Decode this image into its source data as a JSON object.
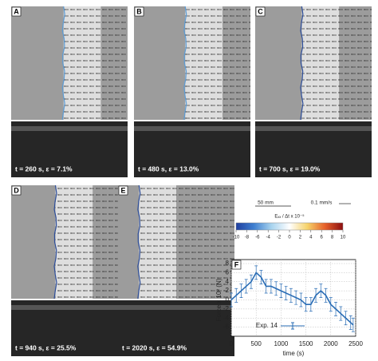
{
  "panels": [
    {
      "label": "A",
      "caption": "t = 260 s, ε = 7.1%"
    },
    {
      "label": "B",
      "caption": "t = 480 s, ε = 13.0%"
    },
    {
      "label": "C",
      "caption": "t = 700 s, ε = 19.0%"
    },
    {
      "label": "D",
      "caption": "t = 940 s, ε = 25.5%"
    },
    {
      "label": "E",
      "caption": "t = 2020 s, ε = 54.9%"
    }
  ],
  "scale": {
    "length": "50 mm",
    "velocity": "0.1 mm/s"
  },
  "colorbar": {
    "label": "Eₓₓ / Δt x 10⁻⁵",
    "lim": [
      -10,
      10
    ],
    "ticks": [
      -10,
      -8,
      -6,
      -4,
      -2,
      0,
      2,
      4,
      6,
      8,
      10
    ],
    "colors": [
      "#1f3f9f",
      "#3f7fd0",
      "#a9d4ef",
      "#ffffff",
      "#f6d36a",
      "#e6602a",
      "#8c0e10"
    ]
  },
  "chart_data": {
    "type": "line",
    "label": "F",
    "xlabel": "time (s)",
    "ylabel": "Force x 10² (N)",
    "x": [
      0,
      100,
      200,
      300,
      400,
      500,
      600,
      700,
      800,
      900,
      1000,
      1100,
      1200,
      1300,
      1400,
      1500,
      1600,
      1700,
      1800,
      1900,
      2000,
      2100,
      2200,
      2300,
      2400,
      2450
    ],
    "series": [
      {
        "name": "Exp. 14",
        "color": "#2a6db5",
        "values": [
          0,
          1,
          2,
          3,
          4,
          6,
          5,
          3,
          3,
          2.5,
          2,
          1.5,
          1,
          0.5,
          0,
          -1,
          -1,
          1,
          2,
          1,
          -1,
          -2,
          -3,
          -4,
          -5,
          -5.5
        ],
        "errors": [
          1.5,
          1.5,
          1.5,
          1.5,
          1.5,
          1.5,
          1.5,
          1.5,
          1.5,
          1.5,
          1.5,
          1.5,
          1.5,
          1.5,
          1.5,
          1.5,
          1.5,
          1.5,
          1.5,
          1.5,
          1.5,
          1.5,
          1.5,
          1.5,
          1.5,
          1.5
        ]
      }
    ],
    "xlim": [
      0,
      2500
    ],
    "xticks": [
      0,
      500,
      1000,
      1500,
      2000,
      2500
    ],
    "ylim": [
      -8,
      8
    ],
    "yticks": [
      -6,
      -4,
      -2,
      0,
      2,
      4,
      6,
      8
    ],
    "grid": true
  }
}
